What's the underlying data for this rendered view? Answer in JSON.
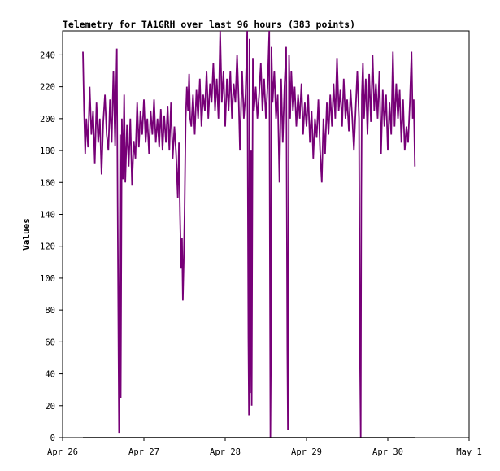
{
  "chart_data": {
    "type": "line",
    "title": "Telemetry for TA1GRH over last 96 hours (383 points)",
    "xlabel": "",
    "ylabel": "Values",
    "ylim": [
      0,
      255
    ],
    "xlim": [
      "2025-04-26",
      "2025-05-01"
    ],
    "x_ticks": [
      "Apr 26",
      "Apr 27",
      "Apr 28",
      "Apr 29",
      "Apr 30",
      "May 1"
    ],
    "y_ticks": [
      0,
      20,
      40,
      60,
      80,
      100,
      120,
      140,
      160,
      180,
      200,
      220,
      240
    ],
    "grid": false,
    "legend": "none",
    "series": [
      {
        "color": "#770077",
        "points": [
          [
            "2025-04-26T06:00",
            242
          ],
          [
            "2025-04-26T06:20",
            205
          ],
          [
            "2025-04-26T06:40",
            178
          ],
          [
            "2025-04-26T07:00",
            200
          ],
          [
            "2025-04-26T07:30",
            182
          ],
          [
            "2025-04-26T08:00",
            220
          ],
          [
            "2025-04-26T08:30",
            190
          ],
          [
            "2025-04-26T09:00",
            205
          ],
          [
            "2025-04-26T09:30",
            172
          ],
          [
            "2025-04-26T10:00",
            210
          ],
          [
            "2025-04-26T10:30",
            185
          ],
          [
            "2025-04-26T11:00",
            200
          ],
          [
            "2025-04-26T11:30",
            165
          ],
          [
            "2025-04-26T12:00",
            198
          ],
          [
            "2025-04-26T12:30",
            215
          ],
          [
            "2025-04-26T13:00",
            190
          ],
          [
            "2025-04-26T13:30",
            180
          ],
          [
            "2025-04-26T14:00",
            212
          ],
          [
            "2025-04-26T14:30",
            185
          ],
          [
            "2025-04-26T15:00",
            230
          ],
          [
            "2025-04-26T15:30",
            183
          ],
          [
            "2025-04-26T16:00",
            244
          ],
          [
            "2025-04-26T16:15",
            145
          ],
          [
            "2025-04-26T16:30",
            50
          ],
          [
            "2025-04-26T16:40",
            3
          ],
          [
            "2025-04-26T17:00",
            190
          ],
          [
            "2025-04-26T17:10",
            25
          ],
          [
            "2025-04-26T17:30",
            200
          ],
          [
            "2025-04-26T17:50",
            162
          ],
          [
            "2025-04-26T18:10",
            215
          ],
          [
            "2025-04-26T18:30",
            160
          ],
          [
            "2025-04-26T19:00",
            196
          ],
          [
            "2025-04-26T19:30",
            170
          ],
          [
            "2025-04-26T20:00",
            200
          ],
          [
            "2025-04-26T20:30",
            158
          ],
          [
            "2025-04-26T21:00",
            186
          ],
          [
            "2025-04-26T21:30",
            175
          ],
          [
            "2025-04-26T22:00",
            210
          ],
          [
            "2025-04-26T22:30",
            182
          ],
          [
            "2025-04-26T23:00",
            205
          ],
          [
            "2025-04-26T23:30",
            190
          ],
          [
            "2025-04-27T00:00",
            212
          ],
          [
            "2025-04-27T00:30",
            185
          ],
          [
            "2025-04-27T01:00",
            200
          ],
          [
            "2025-04-27T01:30",
            178
          ],
          [
            "2025-04-27T02:00",
            205
          ],
          [
            "2025-04-27T02:30",
            190
          ],
          [
            "2025-04-27T03:00",
            212
          ],
          [
            "2025-04-27T03:30",
            185
          ],
          [
            "2025-04-27T04:00",
            200
          ],
          [
            "2025-04-27T04:30",
            182
          ],
          [
            "2025-04-27T05:00",
            206
          ],
          [
            "2025-04-27T05:30",
            180
          ],
          [
            "2025-04-27T06:00",
            202
          ],
          [
            "2025-04-27T06:30",
            185
          ],
          [
            "2025-04-27T07:00",
            208
          ],
          [
            "2025-04-27T07:30",
            180
          ],
          [
            "2025-04-27T08:00",
            210
          ],
          [
            "2025-04-27T08:30",
            175
          ],
          [
            "2025-04-27T09:00",
            195
          ],
          [
            "2025-04-27T09:30",
            178
          ],
          [
            "2025-04-27T10:00",
            150
          ],
          [
            "2025-04-27T10:20",
            185
          ],
          [
            "2025-04-27T10:40",
            140
          ],
          [
            "2025-04-27T11:00",
            106
          ],
          [
            "2025-04-27T11:15",
            125
          ],
          [
            "2025-04-27T11:30",
            86
          ],
          [
            "2025-04-27T11:45",
            110
          ],
          [
            "2025-04-27T12:00",
            140
          ],
          [
            "2025-04-27T12:20",
            200
          ],
          [
            "2025-04-27T12:40",
            220
          ],
          [
            "2025-04-27T13:00",
            205
          ],
          [
            "2025-04-27T13:20",
            228
          ],
          [
            "2025-04-27T13:40",
            200
          ],
          [
            "2025-04-27T14:00",
            195
          ],
          [
            "2025-04-27T14:30",
            215
          ],
          [
            "2025-04-27T15:00",
            190
          ],
          [
            "2025-04-27T15:30",
            218
          ],
          [
            "2025-04-27T16:00",
            200
          ],
          [
            "2025-04-27T16:30",
            225
          ],
          [
            "2025-04-27T17:00",
            195
          ],
          [
            "2025-04-27T17:30",
            215
          ],
          [
            "2025-04-27T18:00",
            205
          ],
          [
            "2025-04-27T18:30",
            230
          ],
          [
            "2025-04-27T19:00",
            200
          ],
          [
            "2025-04-27T19:30",
            222
          ],
          [
            "2025-04-27T20:00",
            210
          ],
          [
            "2025-04-27T20:30",
            235
          ],
          [
            "2025-04-27T21:00",
            205
          ],
          [
            "2025-04-27T21:30",
            225
          ],
          [
            "2025-04-27T22:00",
            200
          ],
          [
            "2025-04-27T22:30",
            255
          ],
          [
            "2025-04-27T23:00",
            210
          ],
          [
            "2025-04-27T23:30",
            230
          ],
          [
            "2025-04-28T00:00",
            195
          ],
          [
            "2025-04-28T00:30",
            225
          ],
          [
            "2025-04-28T01:00",
            205
          ],
          [
            "2025-04-28T01:30",
            230
          ],
          [
            "2025-04-28T02:00",
            200
          ],
          [
            "2025-04-28T02:30",
            222
          ],
          [
            "2025-04-28T03:00",
            210
          ],
          [
            "2025-04-28T03:30",
            240
          ],
          [
            "2025-04-28T04:00",
            210
          ],
          [
            "2025-04-28T04:20",
            180
          ],
          [
            "2025-04-28T04:40",
            205
          ],
          [
            "2025-04-28T05:00",
            230
          ],
          [
            "2025-04-28T05:30",
            200
          ],
          [
            "2025-04-28T06:00",
            215
          ],
          [
            "2025-04-28T06:30",
            255
          ],
          [
            "2025-04-28T06:50",
            62
          ],
          [
            "2025-04-28T07:00",
            14
          ],
          [
            "2025-04-28T07:10",
            250
          ],
          [
            "2025-04-28T07:20",
            28
          ],
          [
            "2025-04-28T07:40",
            180
          ],
          [
            "2025-04-28T07:50",
            20
          ],
          [
            "2025-04-28T08:10",
            238
          ],
          [
            "2025-04-28T08:30",
            205
          ],
          [
            "2025-04-28T09:00",
            220
          ],
          [
            "2025-04-28T09:30",
            200
          ],
          [
            "2025-04-28T10:00",
            215
          ],
          [
            "2025-04-28T10:30",
            235
          ],
          [
            "2025-04-28T11:00",
            205
          ],
          [
            "2025-04-28T11:30",
            225
          ],
          [
            "2025-04-28T12:00",
            200
          ],
          [
            "2025-04-28T12:30",
            220
          ],
          [
            "2025-04-28T13:00",
            255
          ],
          [
            "2025-04-28T13:10",
            120
          ],
          [
            "2025-04-28T13:20",
            0
          ],
          [
            "2025-04-28T13:30",
            55
          ],
          [
            "2025-04-28T13:40",
            245
          ],
          [
            "2025-04-28T14:00",
            210
          ],
          [
            "2025-04-28T14:30",
            230
          ],
          [
            "2025-04-28T15:00",
            200
          ],
          [
            "2025-04-28T15:30",
            215
          ],
          [
            "2025-04-28T16:00",
            160
          ],
          [
            "2025-04-28T16:30",
            225
          ],
          [
            "2025-04-28T17:00",
            185
          ],
          [
            "2025-04-28T17:30",
            220
          ],
          [
            "2025-04-28T18:00",
            245
          ],
          [
            "2025-04-28T18:20",
            55
          ],
          [
            "2025-04-28T18:30",
            5
          ],
          [
            "2025-04-28T18:50",
            240
          ],
          [
            "2025-04-28T19:10",
            200
          ],
          [
            "2025-04-28T19:30",
            230
          ],
          [
            "2025-04-28T20:00",
            205
          ],
          [
            "2025-04-28T20:30",
            220
          ],
          [
            "2025-04-28T21:00",
            195
          ],
          [
            "2025-04-28T21:30",
            215
          ],
          [
            "2025-04-28T22:00",
            200
          ],
          [
            "2025-04-28T22:30",
            222
          ],
          [
            "2025-04-28T23:00",
            190
          ],
          [
            "2025-04-28T23:30",
            210
          ],
          [
            "2025-04-29T00:00",
            195
          ],
          [
            "2025-04-29T00:30",
            215
          ],
          [
            "2025-04-29T01:00",
            185
          ],
          [
            "2025-04-29T01:30",
            205
          ],
          [
            "2025-04-29T02:00",
            175
          ],
          [
            "2025-04-29T02:30",
            200
          ],
          [
            "2025-04-29T03:00",
            188
          ],
          [
            "2025-04-29T03:30",
            212
          ],
          [
            "2025-04-29T04:00",
            180
          ],
          [
            "2025-04-29T04:30",
            160
          ],
          [
            "2025-04-29T05:00",
            200
          ],
          [
            "2025-04-29T05:30",
            178
          ],
          [
            "2025-04-29T06:00",
            210
          ],
          [
            "2025-04-29T06:30",
            190
          ],
          [
            "2025-04-29T07:00",
            215
          ],
          [
            "2025-04-29T07:30",
            195
          ],
          [
            "2025-04-29T08:00",
            222
          ],
          [
            "2025-04-29T08:30",
            200
          ],
          [
            "2025-04-29T09:00",
            238
          ],
          [
            "2025-04-29T09:30",
            205
          ],
          [
            "2025-04-29T10:00",
            218
          ],
          [
            "2025-04-29T10:30",
            195
          ],
          [
            "2025-04-29T11:00",
            225
          ],
          [
            "2025-04-29T11:30",
            200
          ],
          [
            "2025-04-29T12:00",
            212
          ],
          [
            "2025-04-29T12:30",
            192
          ],
          [
            "2025-04-29T13:00",
            218
          ],
          [
            "2025-04-29T13:30",
            200
          ],
          [
            "2025-04-29T14:00",
            180
          ],
          [
            "2025-04-29T14:30",
            205
          ],
          [
            "2025-04-29T15:00",
            230
          ],
          [
            "2025-04-29T15:30",
            200
          ],
          [
            "2025-04-29T15:45",
            60
          ],
          [
            "2025-04-29T16:00",
            0
          ],
          [
            "2025-04-29T16:10",
            150
          ],
          [
            "2025-04-29T16:20",
            215
          ],
          [
            "2025-04-29T16:40",
            235
          ],
          [
            "2025-04-29T17:00",
            200
          ],
          [
            "2025-04-29T17:30",
            225
          ],
          [
            "2025-04-29T18:00",
            190
          ],
          [
            "2025-04-29T18:30",
            228
          ],
          [
            "2025-04-29T19:00",
            198
          ],
          [
            "2025-04-29T19:30",
            240
          ],
          [
            "2025-04-29T20:00",
            205
          ],
          [
            "2025-04-29T20:30",
            222
          ],
          [
            "2025-04-29T21:00",
            200
          ],
          [
            "2025-04-29T21:30",
            230
          ],
          [
            "2025-04-29T22:00",
            178
          ],
          [
            "2025-04-29T22:30",
            218
          ],
          [
            "2025-04-29T23:00",
            195
          ],
          [
            "2025-04-29T23:30",
            215
          ],
          [
            "2025-04-30T00:00",
            180
          ],
          [
            "2025-04-30T00:30",
            210
          ],
          [
            "2025-04-30T01:00",
            190
          ],
          [
            "2025-04-30T01:30",
            242
          ],
          [
            "2025-04-30T02:00",
            195
          ],
          [
            "2025-04-30T02:30",
            222
          ],
          [
            "2025-04-30T03:00",
            200
          ],
          [
            "2025-04-30T03:30",
            218
          ],
          [
            "2025-04-30T04:00",
            185
          ],
          [
            "2025-04-30T04:30",
            212
          ],
          [
            "2025-04-30T05:00",
            180
          ],
          [
            "2025-04-30T05:30",
            195
          ],
          [
            "2025-04-30T06:00",
            185
          ],
          [
            "2025-04-30T06:30",
            210
          ],
          [
            "2025-04-30T07:00",
            242
          ],
          [
            "2025-04-30T07:20",
            200
          ],
          [
            "2025-04-30T07:40",
            212
          ],
          [
            "2025-04-30T08:00",
            170
          ]
        ]
      },
      {
        "color": "#000000",
        "points": [
          [
            "2025-04-26T06:00",
            0
          ],
          [
            "2025-04-30T08:00",
            0
          ]
        ]
      }
    ]
  }
}
